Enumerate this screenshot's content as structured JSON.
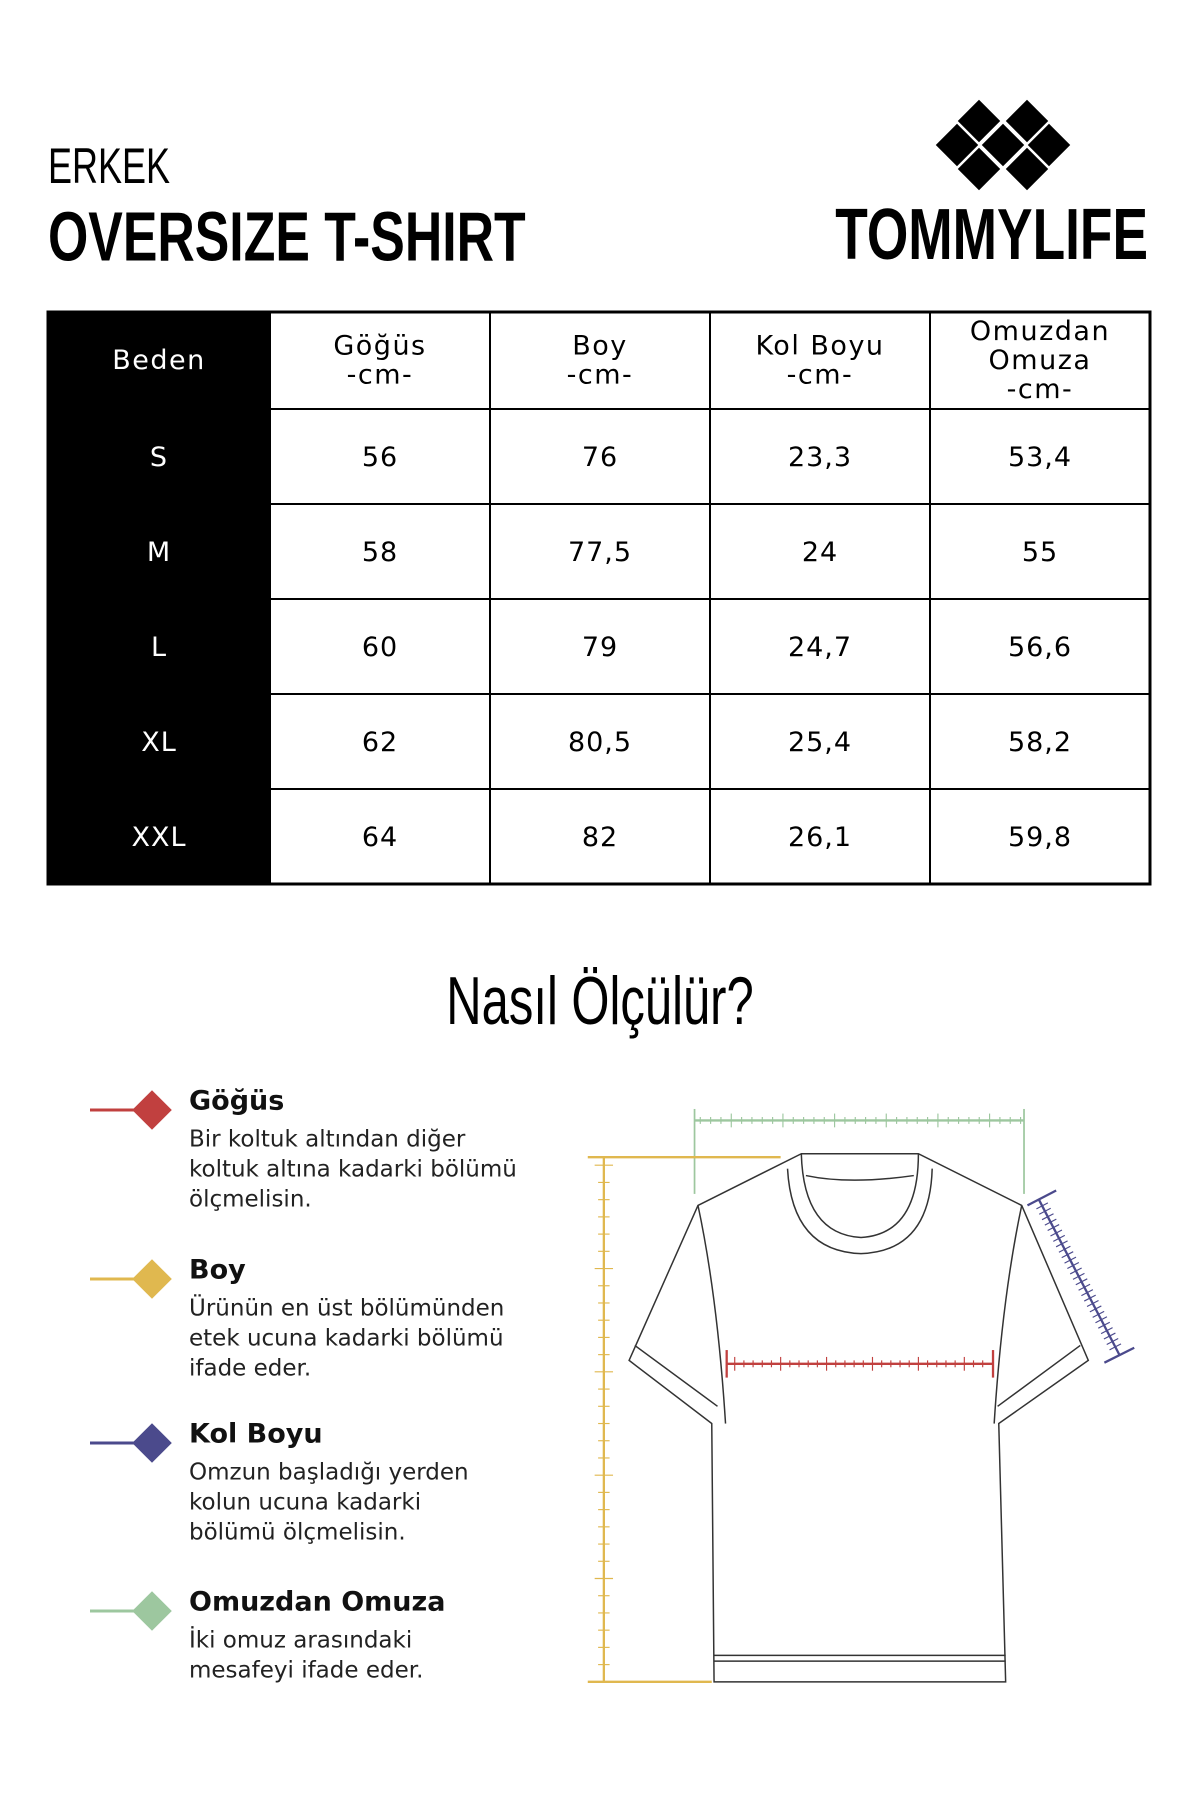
{
  "header": {
    "subtitle": "ERKEK",
    "title": "OVERSIZE T-SHIRT",
    "brand": "TOMMYLIFE"
  },
  "table": {
    "headers": [
      [
        "Beden"
      ],
      [
        "Göğüs",
        "-cm-"
      ],
      [
        "Boy",
        "-cm-"
      ],
      [
        "Kol Boyu",
        "-cm-"
      ],
      [
        "Omuzdan",
        "Omuza",
        "-cm-"
      ]
    ],
    "rows": [
      [
        "S",
        "56",
        "76",
        "23,3",
        "53,4"
      ],
      [
        "M",
        "58",
        "77,5",
        "24",
        "55"
      ],
      [
        "L",
        "60",
        "79",
        "24,7",
        "56,6"
      ],
      [
        "XL",
        "62",
        "80,5",
        "25,4",
        "58,2"
      ],
      [
        "XXL",
        "64",
        "82",
        "26,1",
        "59,8"
      ]
    ]
  },
  "guide": {
    "title": "Nasıl Ölçülür?",
    "items": [
      {
        "title": "Göğüs",
        "color": "#c1403f",
        "lines": [
          "Bir koltuk altından diğer",
          "koltuk altına kadarki bölümü",
          "ölçmelisin."
        ]
      },
      {
        "title": "Boy",
        "color": "#e0b84f",
        "lines": [
          "Ürünün en üst bölümünden",
          "etek ucuna kadarki bölümü",
          "ifade eder."
        ]
      },
      {
        "title": "Kol Boyu",
        "color": "#4b4a8c",
        "lines": [
          "Omzun başladığı yerden",
          "kolun ucuna kadarki",
          "bölümü ölçmelisin."
        ]
      },
      {
        "title": "Omuzdan Omuza",
        "color": "#9dc79f",
        "lines": [
          "İki omuz arasındaki",
          "mesafeyi ifade eder."
        ]
      }
    ]
  }
}
